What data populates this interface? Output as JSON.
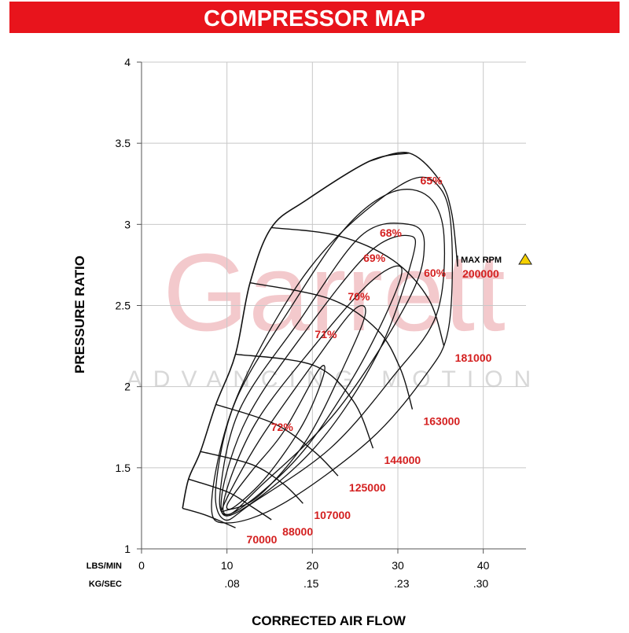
{
  "chart_data": {
    "type": "compressor_map",
    "title": "COMPRESSOR MAP",
    "x_label": "CORRECTED AIR FLOW",
    "y_label": "PRESSURE RATIO",
    "x_unit": "LBS/MIN",
    "x2_unit": "KG/SEC",
    "watermark": {
      "brand": "Garrett",
      "tagline": "ADVANCING MOTION"
    },
    "xlim": [
      0,
      45
    ],
    "ylim": [
      1,
      4
    ],
    "xticks": [
      0,
      10,
      20,
      30,
      40
    ],
    "yticks": [
      1,
      1.5,
      2,
      2.5,
      3,
      3.5,
      4
    ],
    "x2lim": [
      0,
      0.34
    ],
    "x2ticks": [
      {
        "value": 0.08,
        "label": ".08"
      },
      {
        "value": 0.15,
        "label": ".15"
      },
      {
        "value": 0.23,
        "label": ".23"
      },
      {
        "value": 0.3,
        "label": ".30"
      }
    ],
    "grid": true,
    "line_color": "#111111",
    "label_color": "#d42020",
    "max_rpm_label": "MAX RPM",
    "surge_line": {
      "x": [
        4.8,
        5.5,
        6.9,
        8.7,
        11.0,
        12.7,
        15.2,
        19.3,
        26.7,
        31.3
      ],
      "y": [
        1.25,
        1.43,
        1.6,
        1.89,
        2.2,
        2.64,
        2.98,
        3.15,
        3.39,
        3.44
      ]
    },
    "speed_lines": [
      {
        "name": "70000",
        "x": [
          4.8,
          7.4,
          9.7,
          11.0
        ],
        "y": [
          1.25,
          1.21,
          1.16,
          1.13
        ]
      },
      {
        "name": "88000",
        "x": [
          5.5,
          10.1,
          12.9,
          15.2
        ],
        "y": [
          1.43,
          1.35,
          1.26,
          1.18
        ]
      },
      {
        "name": "107000",
        "x": [
          6.9,
          12.9,
          16.6,
          18.9
        ],
        "y": [
          1.6,
          1.52,
          1.4,
          1.28
        ]
      },
      {
        "name": "125000",
        "x": [
          8.7,
          15.6,
          20.2,
          23.0
        ],
        "y": [
          1.89,
          1.77,
          1.6,
          1.45
        ]
      },
      {
        "name": "144000",
        "x": [
          11.0,
          20.2,
          24.8,
          27.1
        ],
        "y": [
          2.2,
          2.13,
          1.91,
          1.62
        ]
      },
      {
        "name": "163000",
        "x": [
          12.7,
          22.1,
          27.6,
          30.3,
          31.7
        ],
        "y": [
          2.64,
          2.54,
          2.35,
          2.11,
          1.86
        ]
      },
      {
        "name": "181000",
        "x": [
          15.2,
          23.0,
          29.4,
          33.6,
          35.4
        ],
        "y": [
          2.98,
          2.93,
          2.78,
          2.54,
          2.25
        ]
      },
      {
        "name": "200000",
        "x": [
          26.7,
          31.3,
          34.9,
          36.3,
          37.0
        ],
        "y": [
          3.39,
          3.44,
          3.27,
          3.07,
          2.74
        ]
      }
    ],
    "efficiency_islands": [
      {
        "name": "72%",
        "x": [
          10.1,
          12.9,
          16.6,
          20.7,
          21.3,
          18.9,
          14.7,
          10.9
        ],
        "y": [
          1.28,
          1.48,
          1.72,
          2.1,
          2.07,
          1.77,
          1.45,
          1.26
        ]
      },
      {
        "name": "71%",
        "x": [
          9.7,
          13.8,
          20.2,
          24.8,
          26.2,
          23.9,
          19.3,
          13.8,
          10.1
        ],
        "y": [
          1.28,
          1.67,
          2.15,
          2.47,
          2.45,
          2.15,
          1.67,
          1.33,
          1.24
        ]
      },
      {
        "name": "70%",
        "x": [
          9.7,
          13.3,
          20.2,
          26.7,
          30.3,
          29.4,
          24.8,
          18.4,
          11.0
        ],
        "y": [
          1.31,
          1.77,
          2.25,
          2.64,
          2.74,
          2.54,
          2.06,
          1.57,
          1.23
        ]
      },
      {
        "name": "69%",
        "x": [
          9.4,
          12.4,
          19.3,
          26.7,
          31.3,
          31.7,
          27.6,
          20.2,
          11.0
        ],
        "y": [
          1.33,
          1.81,
          2.35,
          2.83,
          2.93,
          2.79,
          2.2,
          1.62,
          1.22
        ]
      },
      {
        "name": "68%",
        "x": [
          9.2,
          11.5,
          18.4,
          25.7,
          31.3,
          33.1,
          31.3,
          23.0,
          13.8,
          10.1
        ],
        "y": [
          1.35,
          1.86,
          2.4,
          2.93,
          3.0,
          2.88,
          2.54,
          1.86,
          1.38,
          1.21
        ]
      },
      {
        "name": "65%",
        "x": [
          8.7,
          11.0,
          17.5,
          23.9,
          29.4,
          33.6,
          35.4,
          34.5,
          29.4,
          22.1,
          12.9,
          9.7
        ],
        "y": [
          1.38,
          1.91,
          2.49,
          2.98,
          3.2,
          3.17,
          2.93,
          2.44,
          2.06,
          1.62,
          1.28,
          1.18
        ]
      },
      {
        "name": "60%",
        "x": [
          8.2,
          10.6,
          16.6,
          23.0,
          31.3,
          35.0,
          36.3,
          35.9,
          33.1,
          26.7,
          16.6,
          10.1
        ],
        "y": [
          1.28,
          1.86,
          2.49,
          2.93,
          3.27,
          3.22,
          2.93,
          2.35,
          2.06,
          1.67,
          1.28,
          1.16
        ]
      }
    ]
  }
}
